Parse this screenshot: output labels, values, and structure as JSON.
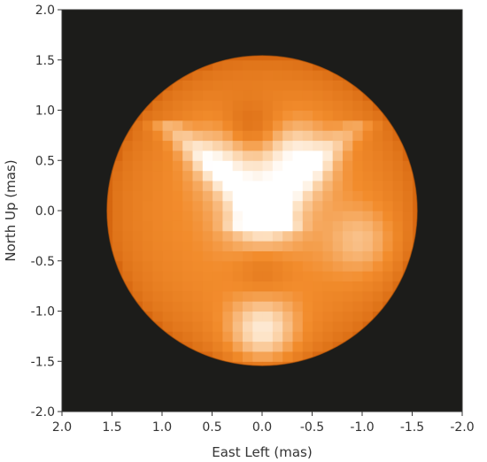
{
  "chart_data": {
    "type": "heatmap",
    "title": "",
    "xlabel": "East Left (mas)",
    "ylabel": "North Up (mas)",
    "xlim": [
      2.0,
      -2.0
    ],
    "ylim": [
      -2.0,
      2.0
    ],
    "x_inverted": true,
    "x_ticks": [
      "2.0",
      "1.5",
      "1.0",
      "0.5",
      "0.0",
      "-0.5",
      "-1.0",
      "-1.5",
      "-2.0"
    ],
    "y_ticks": [
      "2.0",
      "1.5",
      "1.0",
      "0.5",
      "0.0",
      "-0.5",
      "-1.0",
      "-1.5",
      "-2.0"
    ],
    "grid": false,
    "colormap": "orange-white (hot)",
    "background_color": "#1c1c1a",
    "disk": {
      "center": [
        0.0,
        0.0
      ],
      "radius": 1.55
    },
    "bright_features": [
      {
        "center": [
          0.0,
          0.0
        ],
        "intensity": 1.0
      },
      {
        "center": [
          -0.35,
          0.5
        ],
        "intensity": 0.85
      },
      {
        "center": [
          0.35,
          0.55
        ],
        "intensity": 0.7
      },
      {
        "center": [
          0.0,
          -1.2
        ],
        "intensity": 0.85
      },
      {
        "center": [
          -1.0,
          -0.3
        ],
        "intensity": 0.45
      }
    ],
    "dark_features": [
      {
        "center": [
          0.15,
          0.8
        ],
        "depth": 0.35
      },
      {
        "center": [
          0.0,
          -0.6
        ],
        "depth": 0.2
      }
    ]
  },
  "colors": {
    "limb": "#cc5a06",
    "mid": "#f28c2c",
    "bright": "#fde2c4",
    "peak": "#ffffff"
  }
}
